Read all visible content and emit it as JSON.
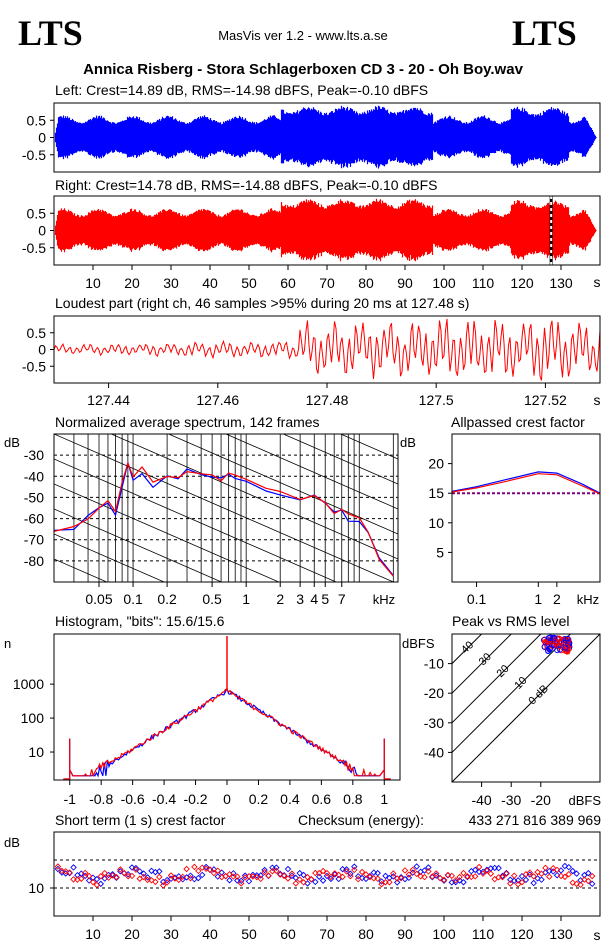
{
  "header": {
    "logo_left": "LTS",
    "logo_right": "LTS",
    "app_title": "MasVis ver 1.2 - www.lts.a.se",
    "file_title": "Annica Risberg - Stora Schlagerboxen CD 3 - 20 - Oh Boy.wav"
  },
  "colors": {
    "left": "#0000ff",
    "right": "#ff0000",
    "purple": "#800080",
    "grid": "#000000"
  },
  "chart_data": [
    {
      "type": "line",
      "id": "left-waveform",
      "title": "Left: Crest=14.89 dB, RMS=-14.98 dBFS, Peak=-0.10 dBFS",
      "ytick_labels": [
        "0.5",
        "0",
        "-0.5"
      ],
      "yticks": [
        0.5,
        0,
        -0.5
      ],
      "ylim": [
        -1,
        1
      ],
      "series": [
        {
          "color": "#0000ff",
          "peak": 0.95
        }
      ]
    },
    {
      "type": "line",
      "id": "right-waveform",
      "title": "Right: Crest=14.78 dB, RMS=-14.88 dBFS, Peak=-0.10 dBFS",
      "ytick_labels": [
        "0.5",
        "0",
        "-0.5"
      ],
      "yticks": [
        0.5,
        0,
        -0.5
      ],
      "ylim": [
        -1,
        1
      ],
      "xticks": [
        10,
        20,
        30,
        40,
        50,
        60,
        70,
        80,
        90,
        100,
        110,
        120,
        130
      ],
      "xtick_labels": [
        "10",
        "20",
        "30",
        "40",
        "50",
        "60",
        "70",
        "80",
        "90",
        "100",
        "110",
        "120",
        "130"
      ],
      "xunit": "s",
      "xlim": [
        0,
        140
      ],
      "marker_x": 127.48,
      "series": [
        {
          "color": "#ff0000",
          "peak": 0.95
        }
      ]
    },
    {
      "type": "line",
      "id": "loudest-part",
      "title": "Loudest part (right ch, 46 samples >95% during 20 ms at 127.48 s)",
      "ytick_labels": [
        "0.5",
        "0",
        "-0.5"
      ],
      "yticks": [
        0.5,
        0,
        -0.5
      ],
      "ylim": [
        -1,
        1
      ],
      "xlim": [
        127.43,
        127.53
      ],
      "xticks": [
        127.44,
        127.46,
        127.48,
        127.5,
        127.52
      ],
      "xtick_labels": [
        "127.44",
        "127.46",
        "127.48",
        "127.5",
        "127.52"
      ],
      "xunit": "s"
    },
    {
      "type": "line",
      "id": "spectrum",
      "title": "Normalized average spectrum, 142 frames",
      "ylabel": "dB",
      "ylim": [
        -90,
        -20
      ],
      "yticks": [
        -30,
        -40,
        -50,
        -60,
        -70,
        -80
      ],
      "ytick_labels": [
        "-30",
        "-40",
        "-50",
        "-60",
        "-70",
        "-80"
      ],
      "xscale": "log",
      "xlim": [
        0.02,
        22
      ],
      "xticks": [
        0.05,
        0.1,
        0.2,
        0.5,
        1,
        2,
        3,
        4,
        5,
        7
      ],
      "xtick_labels": [
        "0.05",
        "0.1",
        "0.2",
        "0.5",
        "1",
        "2",
        "3",
        "4",
        "5",
        "7"
      ],
      "xunit": "kHz",
      "x": [
        0.02,
        0.03,
        0.04,
        0.05,
        0.06,
        0.07,
        0.08,
        0.09,
        0.1,
        0.12,
        0.15,
        0.2,
        0.25,
        0.3,
        0.4,
        0.5,
        0.6,
        0.7,
        0.8,
        1,
        1.5,
        2,
        3,
        4,
        5,
        6,
        7,
        8,
        10,
        12,
        15,
        20
      ],
      "series": [
        {
          "color": "#0000ff",
          "values": [
            -66,
            -65,
            -60,
            -56,
            -52,
            -58,
            -45,
            -35,
            -42,
            -38,
            -45,
            -40,
            -42,
            -38,
            -40,
            -39,
            -42,
            -40,
            -41,
            -42,
            -46,
            -48,
            -52,
            -50,
            -54,
            -58,
            -56,
            -60,
            -62,
            -68,
            -80,
            -88
          ]
        },
        {
          "color": "#ff0000",
          "values": [
            -65,
            -64,
            -59,
            -55,
            -51,
            -57,
            -44,
            -33,
            -41,
            -37,
            -44,
            -39,
            -41,
            -37,
            -39,
            -38,
            -41,
            -39,
            -40,
            -41,
            -45,
            -47,
            -51,
            -49,
            -53,
            -57,
            -55,
            -59,
            -61,
            -67,
            -79,
            -87
          ]
        }
      ]
    },
    {
      "type": "line",
      "id": "allpassed-crest",
      "title": "Allpassed crest factor",
      "ylabel": "dB",
      "ylim": [
        0,
        25
      ],
      "yticks": [
        20,
        15,
        10,
        5
      ],
      "ytick_labels": [
        "20",
        "15",
        "10",
        "5"
      ],
      "xscale": "log",
      "xlim": [
        0.04,
        10
      ],
      "xticks": [
        0.1,
        1,
        2
      ],
      "xtick_labels": [
        "0.1",
        "1",
        "2"
      ],
      "xunit": "kHz",
      "reference": 15,
      "x": [
        0.04,
        0.1,
        0.3,
        1,
        2,
        5,
        10
      ],
      "series": [
        {
          "color": "#0000ff",
          "values": [
            15.3,
            16.1,
            17.3,
            18.6,
            18.4,
            16.6,
            15.0
          ]
        },
        {
          "color": "#ff0000",
          "values": [
            15.2,
            15.9,
            17.0,
            18.3,
            18.1,
            16.3,
            14.9
          ]
        }
      ]
    },
    {
      "type": "line",
      "id": "histogram",
      "title": "Histogram, \"bits\": 15.6/15.6",
      "ylabel": "n",
      "yscale": "log",
      "ylim": [
        1.5,
        30000
      ],
      "yticks": [
        1000,
        100,
        10
      ],
      "ytick_labels": [
        "1000",
        "100",
        "10"
      ],
      "xlim": [
        -1.1,
        1.1
      ],
      "xticks": [
        -1,
        -0.8,
        -0.6,
        -0.4,
        -0.2,
        0,
        0.2,
        0.4,
        0.6,
        0.8,
        1
      ],
      "xtick_labels": [
        "-1",
        "-0.8",
        "-0.6",
        "-0.4",
        "-0.2",
        "0",
        "0.2",
        "0.4",
        "0.6",
        "0.8",
        "1"
      ]
    },
    {
      "type": "scatter",
      "id": "peak-vs-rms",
      "title": "Peak vs RMS level",
      "ylabel": "dBFS",
      "xlabel": "dBFS",
      "xlim": [
        -50,
        0
      ],
      "ylim": [
        -50,
        0
      ],
      "yticks": [
        -10,
        -20,
        -30,
        -40
      ],
      "ytick_labels": [
        "-10",
        "-20",
        "-30",
        "-40"
      ],
      "xticks": [
        -40,
        -30,
        -20
      ],
      "xtick_labels": [
        "-40",
        "-30",
        "-20"
      ],
      "crest_labels": [
        "40",
        "30",
        "20",
        "10",
        "0 dB"
      ],
      "crest_values": [
        40,
        30,
        20,
        10,
        0
      ]
    },
    {
      "type": "scatter",
      "id": "short-term-crest",
      "title": "Short term (1 s) crest factor",
      "checksum_label": "Checksum (energy):",
      "checksum_value": "433 271 816 389 969",
      "ylabel": "dB",
      "ylim": [
        0,
        30
      ],
      "yticks": [
        10
      ],
      "ytick_labels": [
        "10"
      ],
      "xlim": [
        0,
        140
      ],
      "xticks": [
        10,
        20,
        30,
        40,
        50,
        60,
        70,
        80,
        90,
        100,
        110,
        120,
        130
      ],
      "xtick_labels": [
        "10",
        "20",
        "30",
        "40",
        "50",
        "60",
        "70",
        "80",
        "90",
        "100",
        "110",
        "120",
        "130"
      ],
      "xunit": "s",
      "series": [
        {
          "color": "#0000ff",
          "center": 14.5
        },
        {
          "color": "#ff0000",
          "center": 14.3
        }
      ]
    }
  ]
}
